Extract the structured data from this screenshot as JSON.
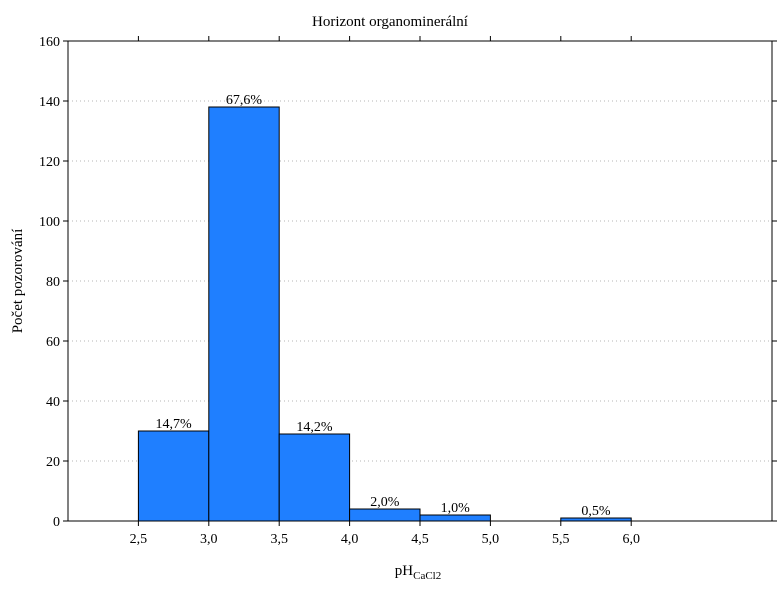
{
  "chart_data": {
    "type": "bar",
    "title": "Horizont organominerální",
    "xlabel": "pH",
    "xlabel_subscript": "CaCl2",
    "ylabel": "Počet pozorování",
    "xlim": [
      2.0,
      7.0
    ],
    "ylim": [
      0,
      160
    ],
    "x_ticks": [
      2.5,
      3.0,
      3.5,
      4.0,
      4.5,
      5.0,
      5.5,
      6.0
    ],
    "x_tick_labels": [
      "2,5",
      "3,0",
      "3,5",
      "4,0",
      "4,5",
      "5,0",
      "5,5",
      "6,0"
    ],
    "y_ticks": [
      0,
      20,
      40,
      60,
      80,
      100,
      120,
      140,
      160
    ],
    "y_tick_labels": [
      "0",
      "20",
      "40",
      "60",
      "80",
      "100",
      "120",
      "140",
      "160"
    ],
    "grid": true,
    "bars": [
      {
        "x0": 2.5,
        "x1": 3.0,
        "value": 30,
        "label": "14,7%"
      },
      {
        "x0": 3.0,
        "x1": 3.5,
        "value": 138,
        "label": "67,6%"
      },
      {
        "x0": 3.5,
        "x1": 4.0,
        "value": 29,
        "label": "14,2%"
      },
      {
        "x0": 4.0,
        "x1": 4.5,
        "value": 4,
        "label": "2,0%"
      },
      {
        "x0": 4.5,
        "x1": 5.0,
        "value": 2,
        "label": "1,0%"
      },
      {
        "x0": 5.5,
        "x1": 6.0,
        "value": 1,
        "label": "0,5%"
      }
    ],
    "bar_color": "#1f7fff",
    "bar_edge_color": "#000000",
    "grid_color": "#b5b5b5"
  }
}
